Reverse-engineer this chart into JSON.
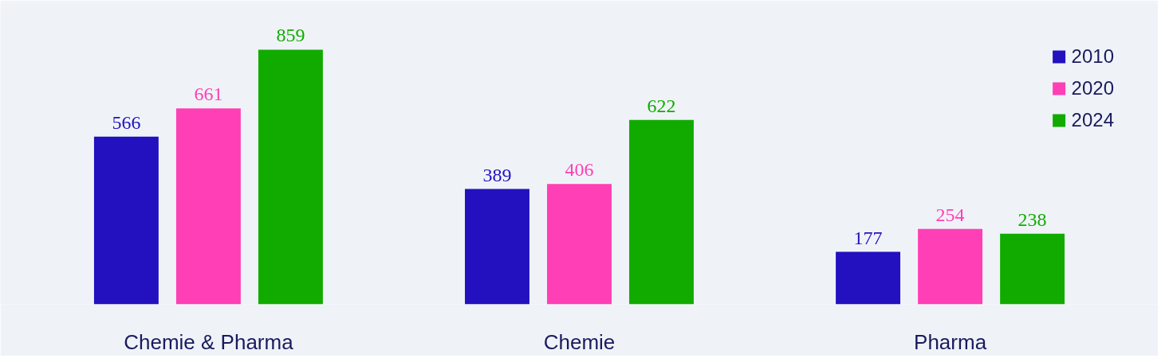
{
  "chart_data": {
    "type": "bar",
    "categories": [
      "Chemie & Pharma",
      "Chemie",
      "Pharma"
    ],
    "series": [
      {
        "name": "2010",
        "color": "#2310bf",
        "values": [
          566,
          389,
          177
        ]
      },
      {
        "name": "2020",
        "color": "#ff3fb5",
        "values": [
          661,
          406,
          254
        ]
      },
      {
        "name": "2024",
        "color": "#11ab00",
        "values": [
          859,
          622,
          238
        ]
      }
    ],
    "ylim": [
      0,
      1020
    ],
    "data_labels": true,
    "legend": "top right",
    "grid": false
  }
}
